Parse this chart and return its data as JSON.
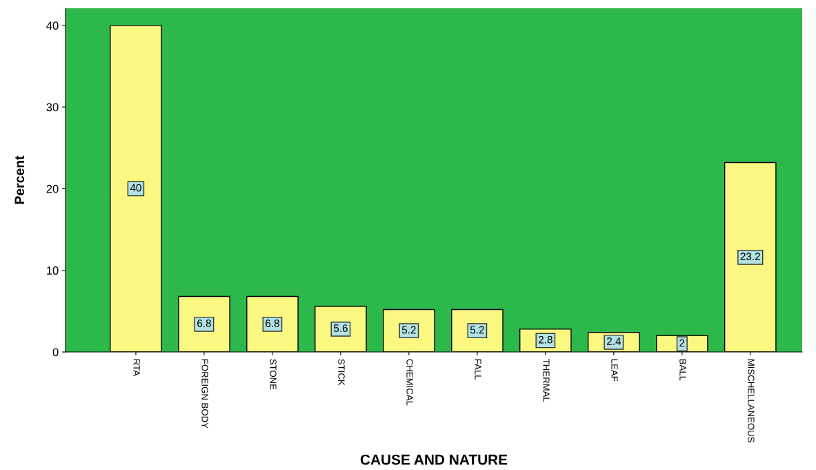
{
  "chart_data": {
    "type": "bar",
    "xlabel": "CAUSE AND NATURE",
    "ylabel": "Percent",
    "categories": [
      "RTA",
      "FOREIGN BODY",
      "STONE",
      "STICK",
      "CHEMICAL",
      "FALL",
      "THERMAL",
      "LEAF",
      "BALL",
      "MISCHELLANEOUS"
    ],
    "values": [
      40,
      6.8,
      6.8,
      5.6,
      5.2,
      5.2,
      2.8,
      2.4,
      2,
      23.2
    ],
    "color": "#fbf882",
    "ylim": [
      0,
      42.1
    ],
    "yticks": [
      0,
      10,
      20,
      30,
      40
    ],
    "data_labels": true,
    "grid": false
  }
}
